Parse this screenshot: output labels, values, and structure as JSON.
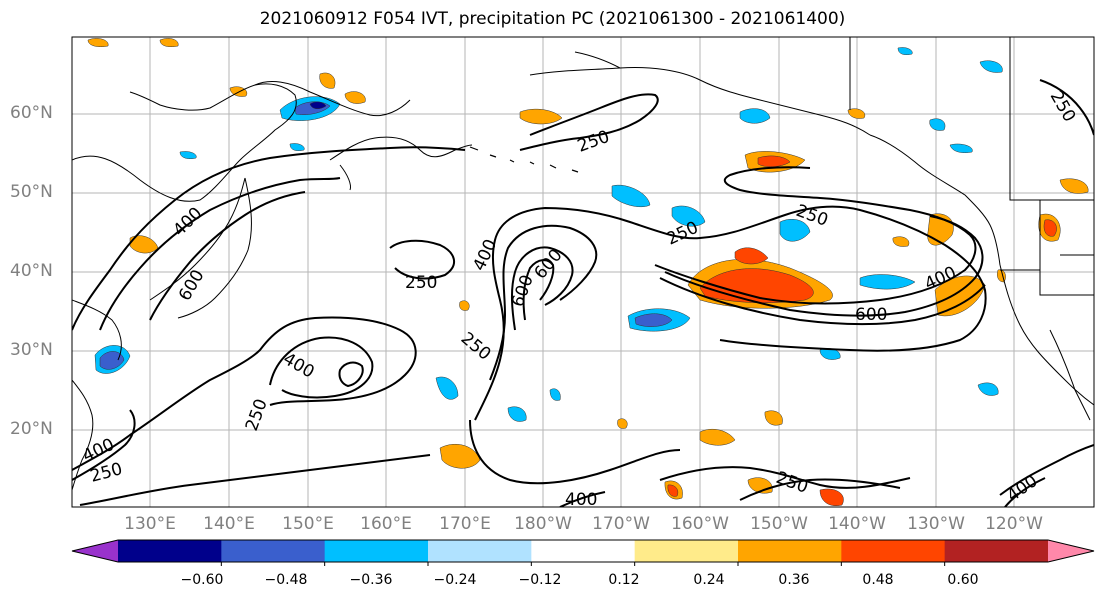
{
  "title": "2021060912 F054 IVT, precipitation PC (2021061300 - 2021061400)",
  "lat_labels": [
    "60°N",
    "50°N",
    "40°N",
    "30°N",
    "20°N"
  ],
  "lon_labels": [
    "130°E",
    "140°E",
    "150°E",
    "160°E",
    "170°E",
    "180°W",
    "170°W",
    "160°W",
    "150°W",
    "140°W",
    "130°W",
    "120°W"
  ],
  "ivt_contour_levels": [
    "250",
    "400",
    "600"
  ],
  "contour_labels": {
    "a": "250",
    "b": "250",
    "c": "250",
    "d": "400",
    "e": "600",
    "f": "400",
    "g": "600",
    "h": "600",
    "i": "250",
    "j": "400",
    "k": "250",
    "l": "400",
    "m": "600",
    "n": "400",
    "o": "250",
    "p": "250",
    "q": "400",
    "r": "250",
    "s": "400",
    "t": "400",
    "u": "400",
    "v": "250"
  },
  "colorbar": {
    "colors": [
      "#9932cc",
      "#00008b",
      "#3a5fcd",
      "#00bfff",
      "#b0e2ff",
      "#ffffff",
      "#ffeb8a",
      "#ffa500",
      "#ff4500",
      "#b22222",
      "#ff88aa"
    ],
    "ticks": [
      "−0.60",
      "−0.48",
      "−0.36",
      "−0.24",
      "−0.12",
      "0.12",
      "0.24",
      "0.36",
      "0.48",
      "0.60"
    ],
    "extend": "both"
  }
}
